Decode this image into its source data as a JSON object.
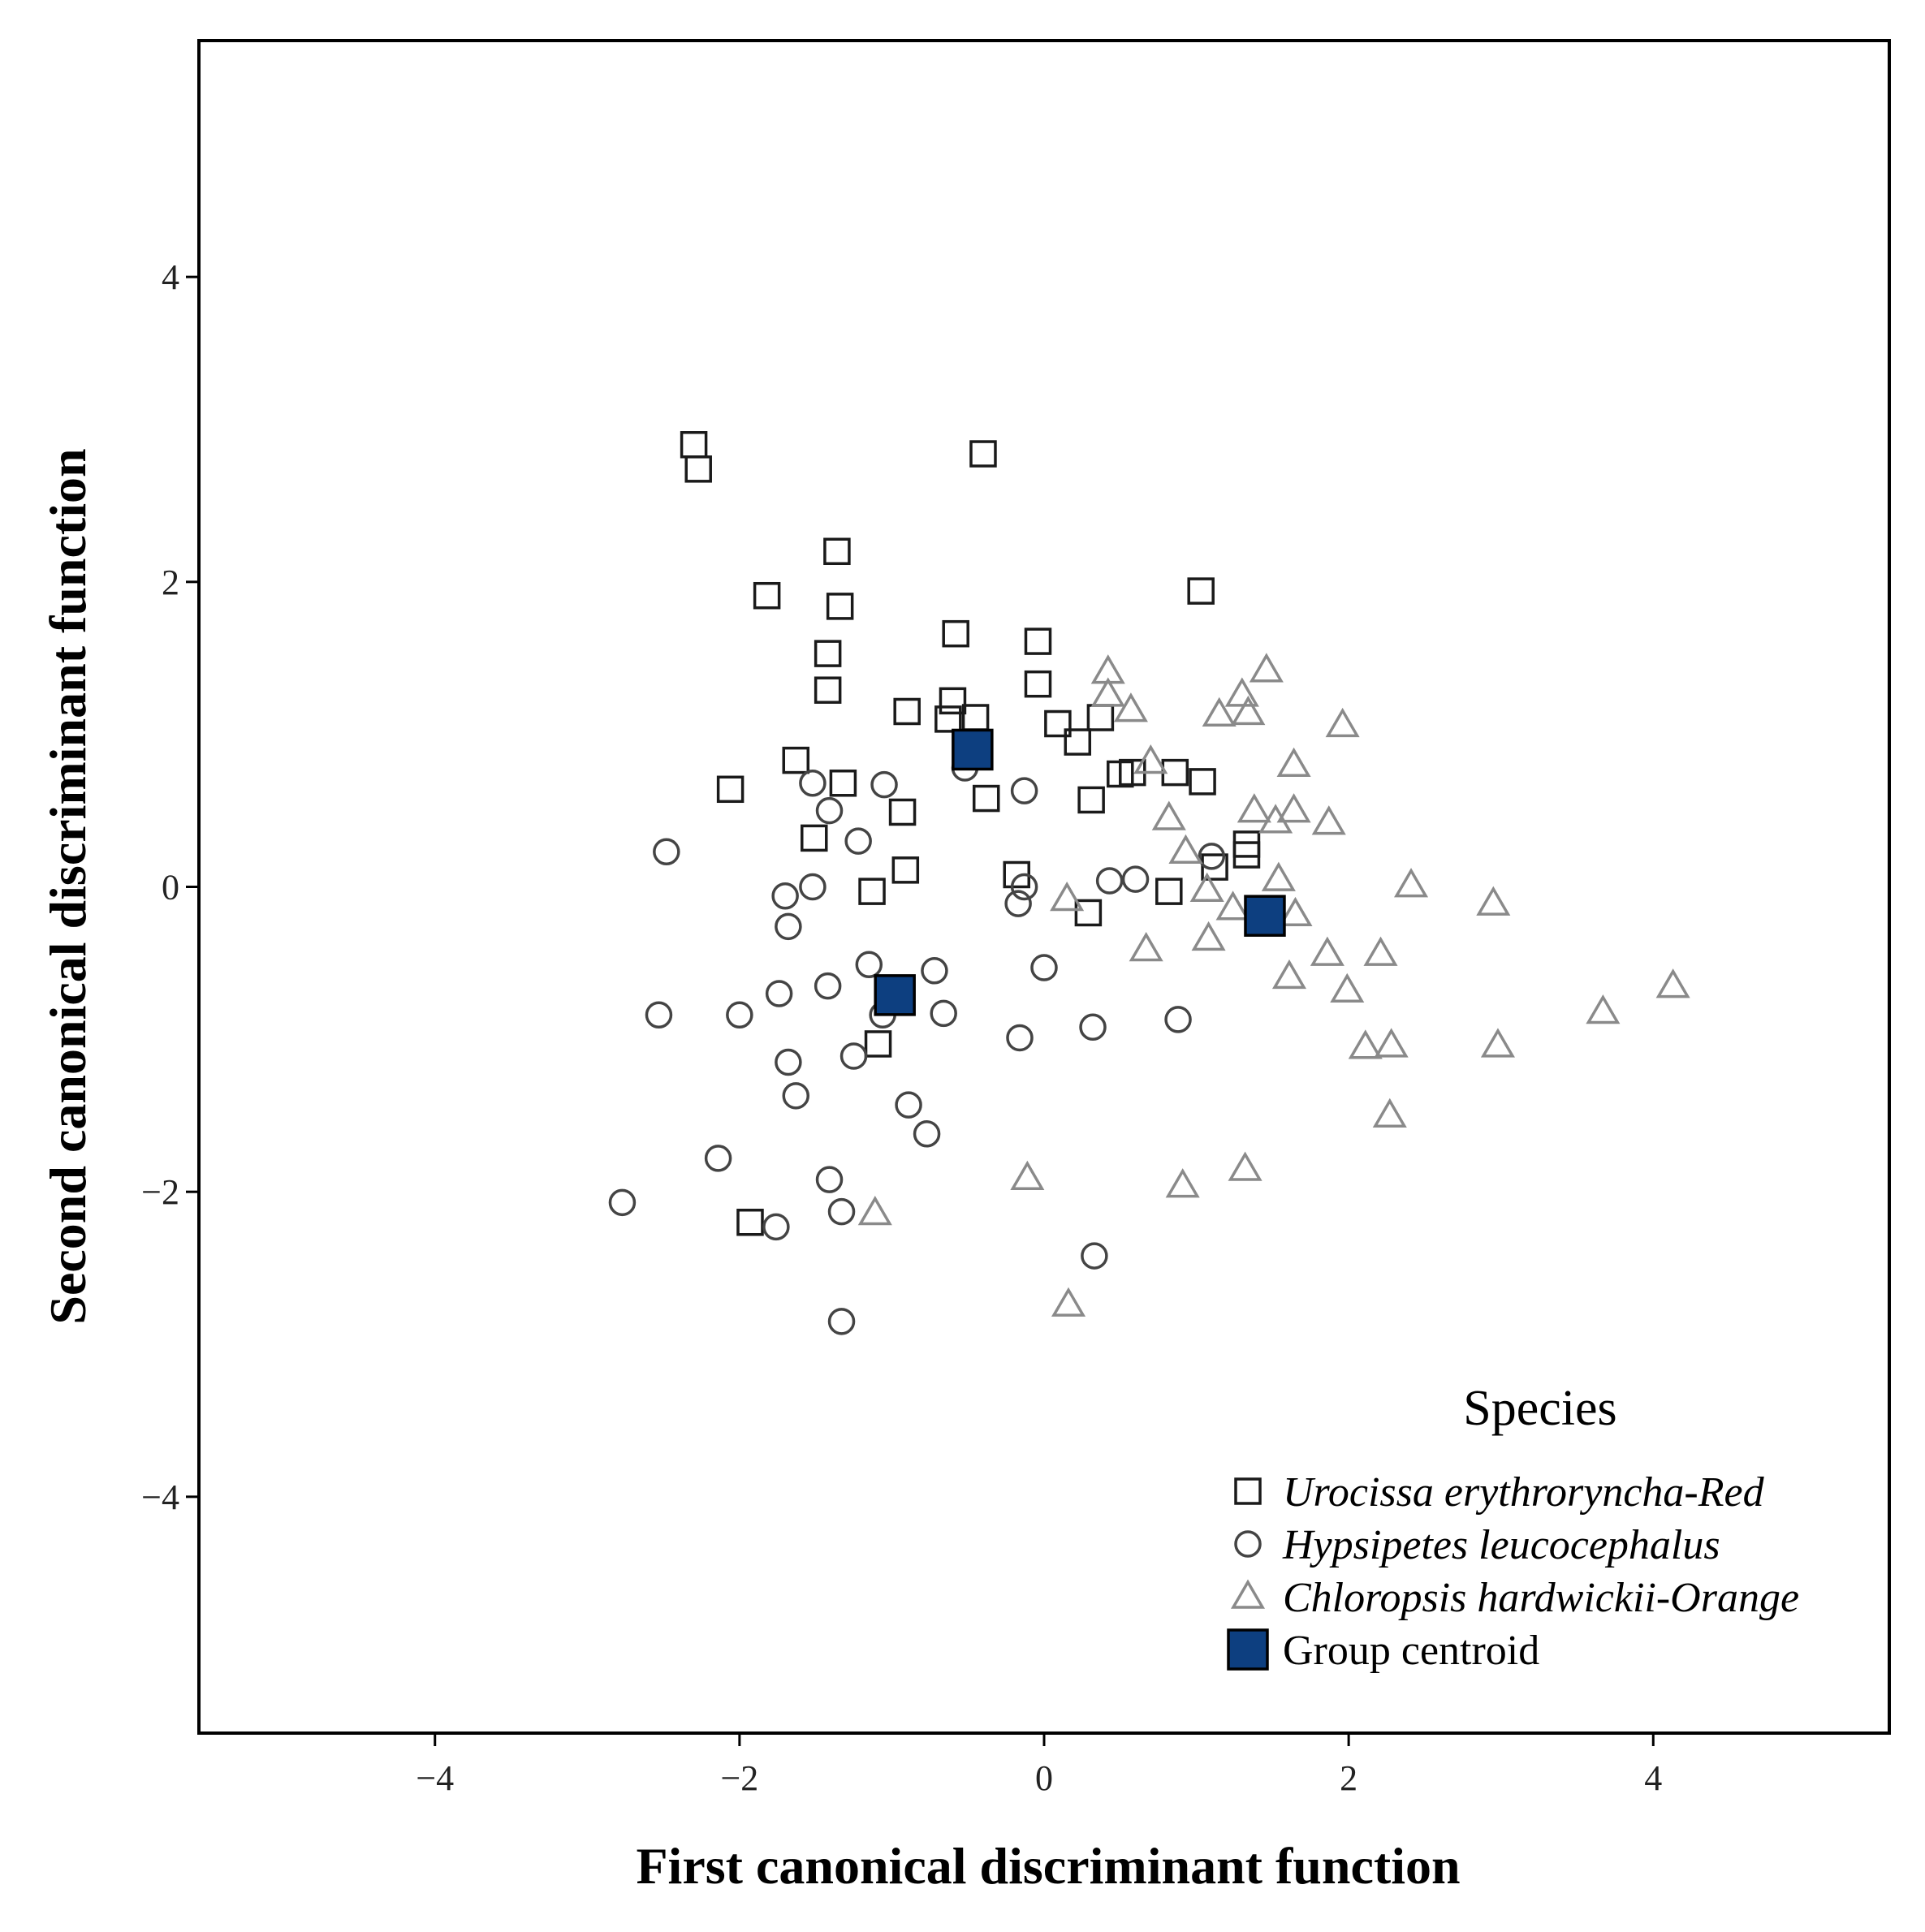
{
  "chart_data": {
    "type": "scatter",
    "title": "",
    "xlabel": "First canonical discriminant function",
    "ylabel": "Second canonical discriminant function",
    "xlim": [
      -5.55,
      5.55
    ],
    "ylim": [
      -5.55,
      5.55
    ],
    "xticks": [
      -4,
      -2,
      0,
      2,
      4
    ],
    "yticks": [
      -4,
      -2,
      0,
      2,
      4
    ],
    "xtick_labels": [
      "−4",
      "−2",
      "0",
      "2",
      "4"
    ],
    "ytick_labels": [
      "−4",
      "−2",
      "0",
      "2",
      "4"
    ],
    "legend": {
      "title": "Species",
      "position": "bottom-right",
      "entries": [
        {
          "label": "Urocissa erythroryncha-Red",
          "marker": "square",
          "italic": true
        },
        {
          "label": "Hypsipetes leucocephalus",
          "marker": "circle",
          "italic": true
        },
        {
          "label": "Chloropsis hardwickii-Orange",
          "marker": "triangle",
          "italic": true
        },
        {
          "label": "Group centroid",
          "marker": "filled-square",
          "italic": false
        }
      ]
    },
    "colors": {
      "square": "#1a1a1a",
      "circle": "#444444",
      "triangle": "#8a8a8a",
      "centroid_fill": "#0d3f80",
      "centroid_edge": "#000000"
    },
    "series": [
      {
        "name": "Urocissa erythroryncha-Red",
        "marker": "square",
        "points": [
          [
            -2.3,
            2.9
          ],
          [
            -2.27,
            2.74
          ],
          [
            -0.4,
            2.84
          ],
          [
            -1.36,
            2.2
          ],
          [
            -1.82,
            1.91
          ],
          [
            -1.34,
            1.84
          ],
          [
            -1.42,
            1.53
          ],
          [
            -1.42,
            1.29
          ],
          [
            1.03,
            1.94
          ],
          [
            -0.58,
            1.66
          ],
          [
            -0.04,
            1.61
          ],
          [
            -0.6,
            1.22
          ],
          [
            -0.04,
            1.33
          ],
          [
            -0.9,
            1.15
          ],
          [
            -0.63,
            1.1
          ],
          [
            -0.45,
            1.11
          ],
          [
            0.09,
            1.07
          ],
          [
            0.37,
            1.11
          ],
          [
            0.22,
            0.95
          ],
          [
            -1.63,
            0.83
          ],
          [
            -2.06,
            0.64
          ],
          [
            -1.32,
            0.68
          ],
          [
            -0.38,
            0.58
          ],
          [
            -0.93,
            0.49
          ],
          [
            0.31,
            0.57
          ],
          [
            0.5,
            0.74
          ],
          [
            0.58,
            0.75
          ],
          [
            0.86,
            0.75
          ],
          [
            1.04,
            0.69
          ],
          [
            -1.51,
            0.32
          ],
          [
            1.33,
            0.28
          ],
          [
            1.33,
            0.21
          ],
          [
            1.12,
            0.13
          ],
          [
            -0.91,
            0.11
          ],
          [
            -0.18,
            0.08
          ],
          [
            -1.13,
            -0.03
          ],
          [
            0.82,
            -0.03
          ],
          [
            0.29,
            -0.17
          ],
          [
            -1.09,
            -1.03
          ],
          [
            -1.93,
            -2.2
          ]
        ]
      },
      {
        "name": "Hypsipetes leucocephalus",
        "marker": "circle",
        "points": [
          [
            -1.52,
            0.68
          ],
          [
            -1.05,
            0.67
          ],
          [
            -0.52,
            0.78
          ],
          [
            -0.13,
            0.63
          ],
          [
            -1.41,
            0.5
          ],
          [
            -1.22,
            0.3
          ],
          [
            -2.48,
            0.23
          ],
          [
            -1.52,
            0.0
          ],
          [
            -1.7,
            -0.06
          ],
          [
            -1.68,
            -0.26
          ],
          [
            -0.13,
            0.0
          ],
          [
            -0.17,
            -0.11
          ],
          [
            0.43,
            0.04
          ],
          [
            0.6,
            0.05
          ],
          [
            1.1,
            0.2
          ],
          [
            -1.15,
            -0.51
          ],
          [
            -0.72,
            -0.55
          ],
          [
            0.0,
            -0.53
          ],
          [
            -1.74,
            -0.7
          ],
          [
            -1.42,
            -0.65
          ],
          [
            -2.53,
            -0.84
          ],
          [
            -2.0,
            -0.84
          ],
          [
            -1.06,
            -0.84
          ],
          [
            -0.66,
            -0.83
          ],
          [
            0.32,
            -0.92
          ],
          [
            0.88,
            -0.87
          ],
          [
            -0.16,
            -0.99
          ],
          [
            -1.68,
            -1.15
          ],
          [
            -1.25,
            -1.11
          ],
          [
            -1.63,
            -1.37
          ],
          [
            -0.89,
            -1.43
          ],
          [
            -0.77,
            -1.62
          ],
          [
            -2.14,
            -1.78
          ],
          [
            -1.41,
            -1.92
          ],
          [
            -2.77,
            -2.07
          ],
          [
            -1.76,
            -2.23
          ],
          [
            -1.33,
            -2.13
          ],
          [
            0.33,
            -2.42
          ],
          [
            -1.33,
            -2.85
          ]
        ]
      },
      {
        "name": "Chloropsis hardwickii-Orange",
        "marker": "triangle",
        "points": [
          [
            0.42,
            1.41
          ],
          [
            0.42,
            1.26
          ],
          [
            0.57,
            1.16
          ],
          [
            1.46,
            1.42
          ],
          [
            1.3,
            1.26
          ],
          [
            1.15,
            1.13
          ],
          [
            1.34,
            1.14
          ],
          [
            1.96,
            1.06
          ],
          [
            0.7,
            0.82
          ],
          [
            1.64,
            0.8
          ],
          [
            0.82,
            0.45
          ],
          [
            1.38,
            0.5
          ],
          [
            1.52,
            0.43
          ],
          [
            1.64,
            0.5
          ],
          [
            1.87,
            0.42
          ],
          [
            0.93,
            0.23
          ],
          [
            1.54,
            0.05
          ],
          [
            1.07,
            -0.02
          ],
          [
            2.41,
            0.01
          ],
          [
            0.15,
            -0.08
          ],
          [
            1.24,
            -0.14
          ],
          [
            1.65,
            -0.18
          ],
          [
            2.95,
            -0.11
          ],
          [
            0.67,
            -0.41
          ],
          [
            1.08,
            -0.34
          ],
          [
            1.86,
            -0.44
          ],
          [
            2.21,
            -0.44
          ],
          [
            1.61,
            -0.59
          ],
          [
            1.99,
            -0.68
          ],
          [
            4.13,
            -0.65
          ],
          [
            3.67,
            -0.82
          ],
          [
            2.11,
            -1.05
          ],
          [
            2.28,
            -1.04
          ],
          [
            2.98,
            -1.04
          ],
          [
            2.27,
            -1.5
          ],
          [
            -0.11,
            -1.91
          ],
          [
            0.91,
            -1.96
          ],
          [
            1.32,
            -1.85
          ],
          [
            -1.11,
            -2.14
          ],
          [
            0.16,
            -2.74
          ]
        ]
      },
      {
        "name": "Group centroid",
        "marker": "filled-square",
        "points": [
          [
            -0.47,
            0.9
          ],
          [
            -0.98,
            -0.71
          ],
          [
            1.45,
            -0.19
          ]
        ]
      }
    ]
  }
}
